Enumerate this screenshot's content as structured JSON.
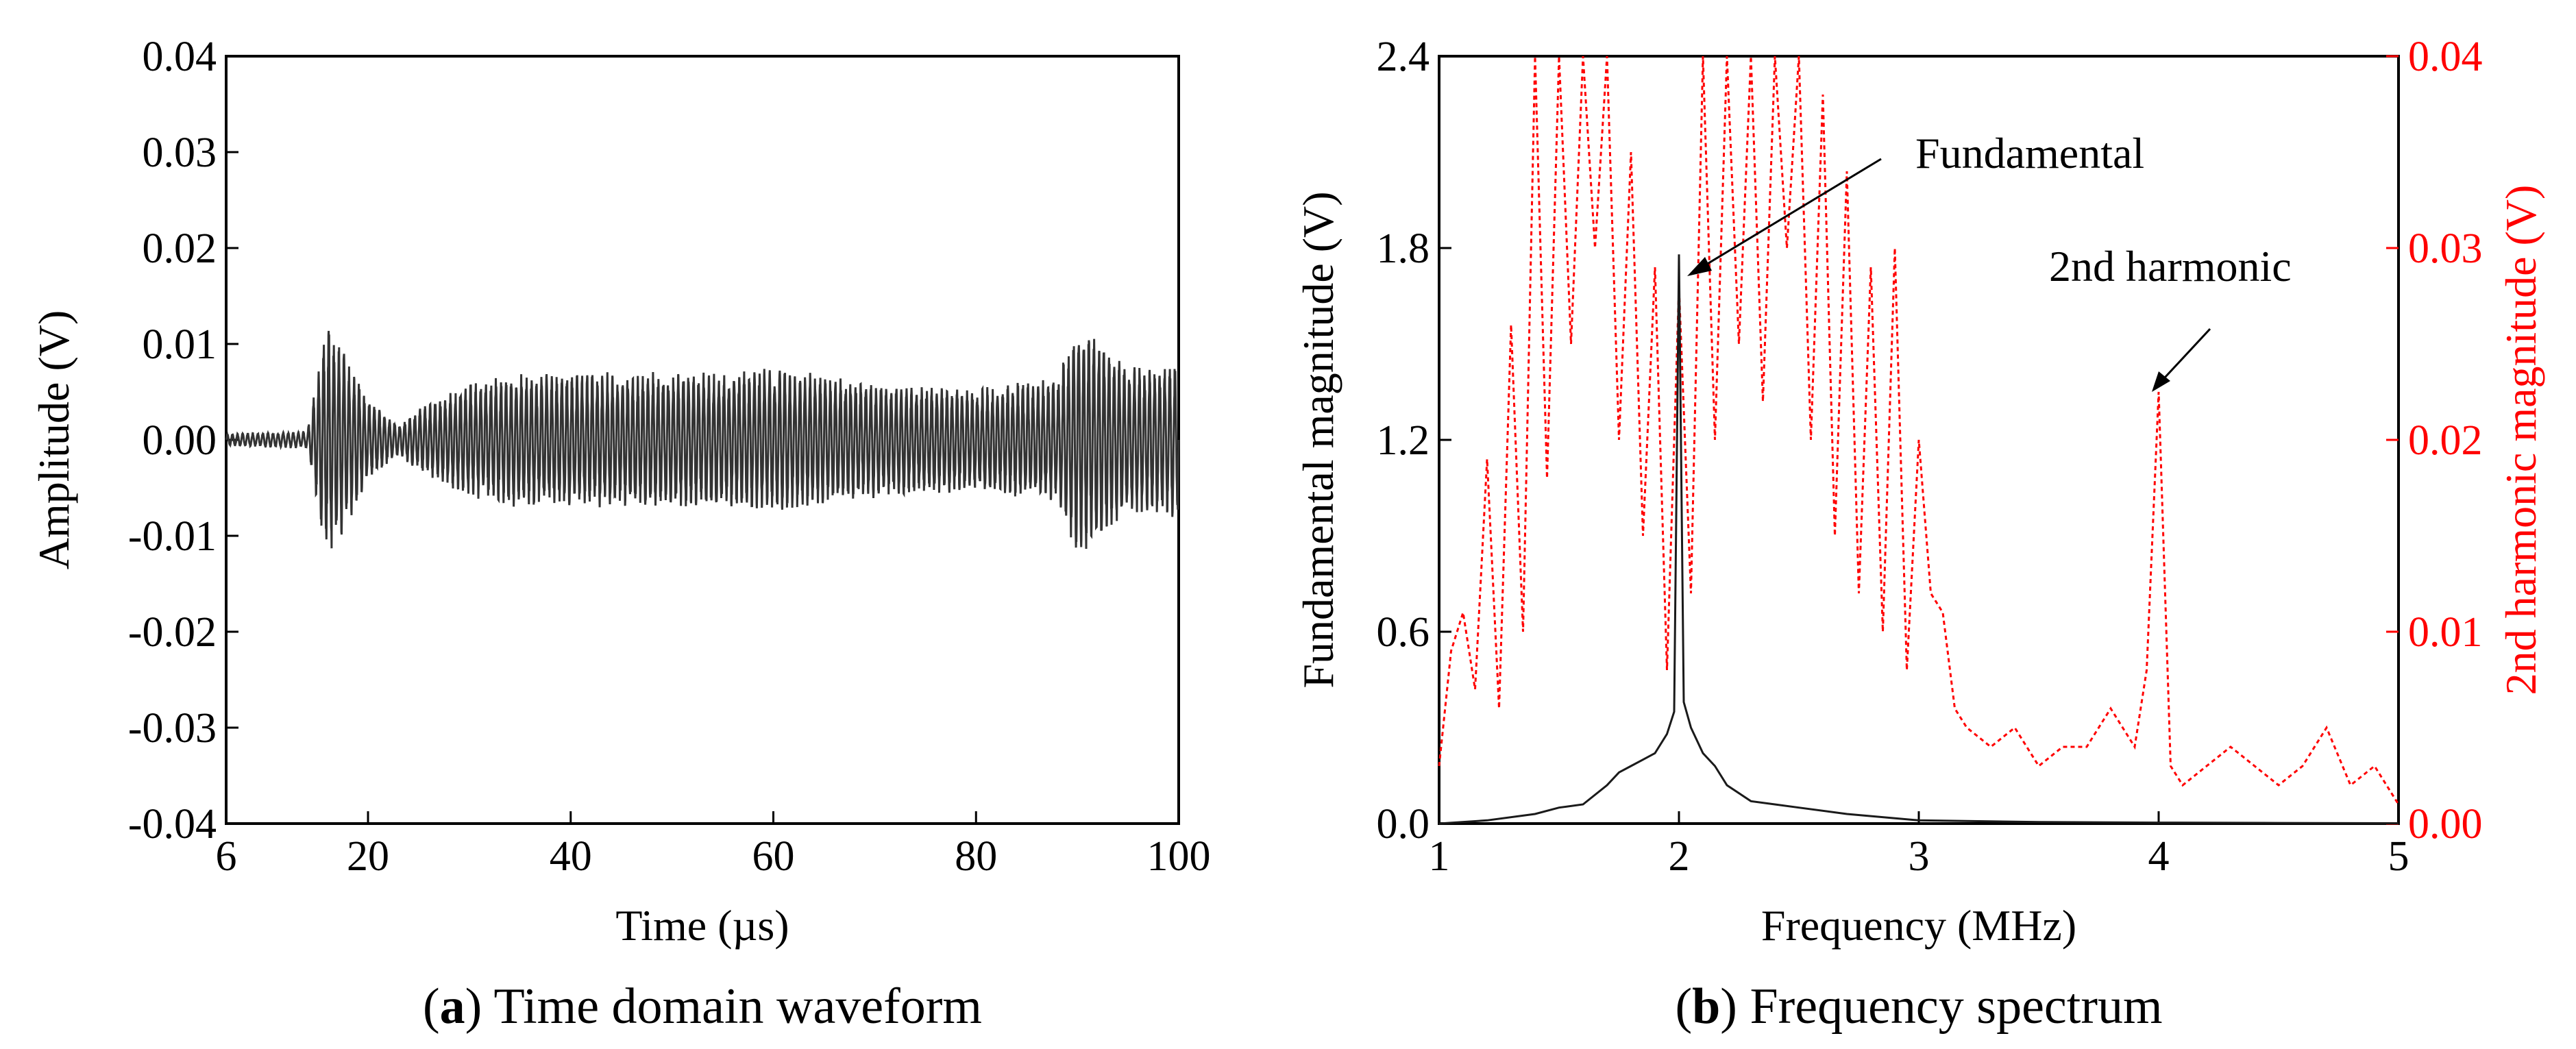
{
  "chart_data": [
    {
      "type": "line",
      "panel": "a",
      "caption_letter": "a",
      "caption_text": " Time domain waveform",
      "xlabel": "Time (µs)",
      "ylabel": "Amplitude (V)",
      "xlim": [
        6,
        100
      ],
      "ylim": [
        -0.04,
        0.04
      ],
      "xticks": [
        6,
        20,
        40,
        60,
        80,
        100
      ],
      "yticks": [
        -0.04,
        -0.03,
        -0.02,
        -0.01,
        0.0,
        0.01,
        0.02,
        0.03,
        0.04
      ],
      "ytick_labels": [
        "-0.04",
        "-0.03",
        "-0.02",
        "-0.01",
        "0.00",
        "0.01",
        "0.02",
        "0.03",
        "0.04"
      ],
      "xtick_labels": [
        "6",
        "20",
        "40",
        "60",
        "80",
        "100"
      ],
      "grid": false,
      "series": [
        {
          "name": "waveform",
          "color": "#333333",
          "envelope": {
            "t": [
              6,
              14,
              16,
              17,
              20,
              23,
              25,
              30,
              35,
              45,
              55,
              60,
              70,
              80,
              88,
              90,
              92,
              95,
              100
            ],
            "amp": [
              0.0006,
              0.0008,
              0.012,
              0.01,
              0.004,
              0.0015,
              0.003,
              0.0055,
              0.0065,
              0.0065,
              0.0065,
              0.007,
              0.0055,
              0.005,
              0.006,
              0.011,
              0.01,
              0.007,
              0.0075
            ]
          },
          "carrier_frequency_mhz": 2.0
        }
      ]
    },
    {
      "type": "line",
      "panel": "b",
      "caption_letter": "b",
      "caption_text": " Frequency spectrum",
      "xlabel": "Frequency (MHz)",
      "ylabel": "Fundamental magnitude (V)",
      "ylabel_right": "2nd harmonic magnitude (V)",
      "xlim": [
        1,
        5
      ],
      "ylim": [
        0,
        2.4
      ],
      "ylim_right": [
        0,
        0.04
      ],
      "xticks": [
        1,
        2,
        3,
        4,
        5
      ],
      "xtick_labels": [
        "1",
        "2",
        "3",
        "4",
        "5"
      ],
      "yticks": [
        0.0,
        0.6,
        1.2,
        1.8,
        2.4
      ],
      "ytick_labels": [
        "0.0",
        "0.6",
        "1.2",
        "1.8",
        "2.4"
      ],
      "yticks_right": [
        0.0,
        0.01,
        0.02,
        0.03,
        0.04
      ],
      "ytick_labels_right": [
        "0.00",
        "0.01",
        "0.02",
        "0.03",
        "0.04"
      ],
      "grid": false,
      "annotations": [
        {
          "text": "Fundamental",
          "x": 2.0,
          "y": 1.78,
          "axis": "left"
        },
        {
          "text": "2nd harmonic",
          "x": 4.0,
          "y": 0.0225,
          "axis": "right"
        }
      ],
      "series": [
        {
          "name": "Fundamental",
          "axis": "left",
          "color": "#1a1a1a",
          "style": "solid",
          "x": [
            1.0,
            1.2,
            1.4,
            1.5,
            1.6,
            1.7,
            1.75,
            1.8,
            1.85,
            1.9,
            1.95,
            1.98,
            2.0,
            2.02,
            2.05,
            2.1,
            2.15,
            2.2,
            2.3,
            2.4,
            2.5,
            2.7,
            3.0,
            3.5,
            4.0,
            4.5,
            5.0
          ],
          "y": [
            0.0,
            0.01,
            0.03,
            0.05,
            0.06,
            0.12,
            0.16,
            0.18,
            0.2,
            0.22,
            0.28,
            0.35,
            1.78,
            0.38,
            0.3,
            0.22,
            0.18,
            0.12,
            0.07,
            0.06,
            0.05,
            0.03,
            0.01,
            0.005,
            0.003,
            0.002,
            0.001
          ]
        },
        {
          "name": "2nd harmonic",
          "axis": "right",
          "color": "#ff0000",
          "style": "dotted",
          "x": [
            1.0,
            1.05,
            1.1,
            1.15,
            1.2,
            1.25,
            1.3,
            1.35,
            1.4,
            1.45,
            1.5,
            1.55,
            1.6,
            1.65,
            1.7,
            1.75,
            1.8,
            1.85,
            1.9,
            1.95,
            2.0,
            2.05,
            2.1,
            2.15,
            2.2,
            2.25,
            2.3,
            2.35,
            2.4,
            2.45,
            2.5,
            2.55,
            2.6,
            2.65,
            2.7,
            2.75,
            2.8,
            2.85,
            2.9,
            2.95,
            3.0,
            3.05,
            3.1,
            3.15,
            3.2,
            3.3,
            3.4,
            3.5,
            3.6,
            3.7,
            3.8,
            3.9,
            3.95,
            4.0,
            4.05,
            4.1,
            4.2,
            4.3,
            4.4,
            4.5,
            4.6,
            4.7,
            4.8,
            4.9,
            5.0
          ],
          "y": [
            0.003,
            0.009,
            0.011,
            0.007,
            0.019,
            0.006,
            0.026,
            0.01,
            0.04,
            0.018,
            0.04,
            0.025,
            0.04,
            0.03,
            0.04,
            0.02,
            0.035,
            0.015,
            0.029,
            0.008,
            0.028,
            0.012,
            0.04,
            0.02,
            0.04,
            0.025,
            0.04,
            0.022,
            0.04,
            0.03,
            0.04,
            0.02,
            0.038,
            0.015,
            0.034,
            0.012,
            0.029,
            0.01,
            0.03,
            0.008,
            0.02,
            0.012,
            0.011,
            0.006,
            0.005,
            0.004,
            0.005,
            0.003,
            0.004,
            0.004,
            0.006,
            0.004,
            0.008,
            0.0225,
            0.003,
            0.002,
            0.003,
            0.004,
            0.003,
            0.002,
            0.003,
            0.005,
            0.002,
            0.003,
            0.001
          ]
        }
      ]
    }
  ]
}
